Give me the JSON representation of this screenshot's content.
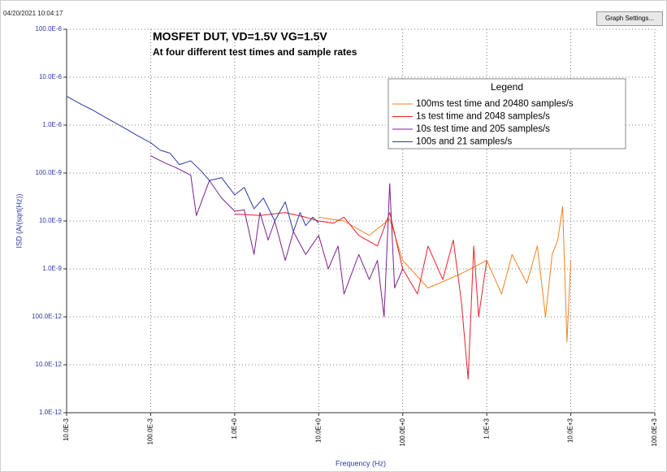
{
  "toolbar": {
    "timestamp": "04/20/2021 10:04:17",
    "button": "Graph Settings..."
  },
  "chart_data": {
    "type": "line",
    "title": "MOSFET DUT, VD=1.5V VG=1.5V",
    "subtitle": "At four different test times and sample rates",
    "x_label": "Frequency (Hz)",
    "y_label": "ISD (A/(sqrt(Hz))",
    "x_log": true,
    "y_log": true,
    "grid": true,
    "legend_title": "Legend",
    "legend_position": "upper right",
    "xlim": [
      0.01,
      100000
    ],
    "ylim": [
      1e-12,
      0.0001
    ],
    "xticks": [
      {
        "value": 0.01,
        "label": "10.0E-3"
      },
      {
        "value": 0.1,
        "label": "100.0E-3"
      },
      {
        "value": 1,
        "label": "1.0E+0"
      },
      {
        "value": 10,
        "label": "10.0E+0"
      },
      {
        "value": 100,
        "label": "100.0E+0"
      },
      {
        "value": 1000,
        "label": "1.0E+3"
      },
      {
        "value": 10000,
        "label": "10.0E+3"
      },
      {
        "value": 100000,
        "label": "100.0E+3"
      }
    ],
    "yticks": [
      {
        "value": 1e-12,
        "label": "1.0E-12"
      },
      {
        "value": 1e-11,
        "label": "10.0E-12"
      },
      {
        "value": 1e-10,
        "label": "100.0E-12"
      },
      {
        "value": 1e-09,
        "label": "1.0E-9"
      },
      {
        "value": 1e-08,
        "label": "10.0E-9"
      },
      {
        "value": 1e-07,
        "label": "100.0E-9"
      },
      {
        "value": 1e-06,
        "label": "1.0E-6"
      },
      {
        "value": 1e-05,
        "label": "10.0E-6"
      },
      {
        "value": 0.0001,
        "label": "100.0E-6"
      }
    ],
    "series": [
      {
        "name": "100ms test time and 20480 samples/s",
        "color": "#f5821f",
        "x": [
          10,
          20,
          40,
          70,
          100,
          200,
          500,
          1000,
          1500,
          2000,
          3000,
          4000,
          5000,
          6000,
          7000,
          8000,
          9000,
          10000
        ],
        "values": [
          1.2e-08,
          1e-08,
          5e-09,
          1.1e-08,
          1.5e-09,
          4e-10,
          8e-10,
          1.5e-09,
          3e-10,
          2e-09,
          5e-10,
          3e-09,
          1e-10,
          2e-09,
          4e-09,
          2e-08,
          3e-11,
          1.5e-09
        ]
      },
      {
        "name": "1s test time and 2048 samples/s",
        "color": "#e8202a",
        "x": [
          1,
          2,
          4,
          7,
          10,
          15,
          20,
          30,
          50,
          70,
          100,
          150,
          200,
          300,
          400,
          500,
          600,
          700,
          800,
          1000
        ],
        "values": [
          1.4e-08,
          1.3e-08,
          1.5e-08,
          1.2e-08,
          1e-08,
          9e-09,
          1.2e-08,
          5e-09,
          3e-09,
          1.5e-08,
          1e-09,
          3e-10,
          3e-09,
          6e-10,
          4e-09,
          2e-10,
          5e-12,
          3e-09,
          1e-10,
          1.5e-09
        ]
      },
      {
        "name": "10s test time and 205 samples/s",
        "color": "#7b1f8f",
        "x": [
          0.1,
          0.15,
          0.2,
          0.3,
          0.35,
          0.5,
          0.7,
          1,
          1.3,
          1.7,
          2,
          2.5,
          3,
          4,
          5,
          7,
          10,
          13,
          17,
          20,
          30,
          40,
          50,
          60,
          70,
          80,
          100
        ],
        "values": [
          2.3e-07,
          1.6e-07,
          1.3e-07,
          9e-08,
          1.3e-08,
          7e-08,
          3e-08,
          1.6e-08,
          1.7e-08,
          2e-09,
          1.5e-08,
          4e-09,
          1e-08,
          1.5e-09,
          6e-09,
          2e-09,
          5e-09,
          1e-09,
          3e-09,
          3e-10,
          2e-09,
          6e-10,
          1.5e-09,
          1e-10,
          6e-08,
          4e-10,
          1e-09
        ]
      },
      {
        "name": "100s and 21 samples/s",
        "color": "#2e3a9f",
        "x": [
          0.01,
          0.015,
          0.02,
          0.03,
          0.05,
          0.07,
          0.1,
          0.13,
          0.17,
          0.22,
          0.3,
          0.4,
          0.5,
          0.7,
          1,
          1.3,
          1.7,
          2.2,
          3,
          4,
          5,
          6,
          7,
          8.5,
          10
        ],
        "values": [
          4e-06,
          2.7e-06,
          2.1e-06,
          1.4e-06,
          8.5e-07,
          6e-07,
          4.3e-07,
          3e-07,
          2.6e-07,
          1.5e-07,
          1.8e-07,
          1.1e-07,
          7e-08,
          8e-08,
          3.5e-08,
          5e-08,
          1.8e-08,
          3e-08,
          1e-08,
          2.5e-08,
          6e-09,
          1.5e-08,
          8e-09,
          1.2e-08,
          9e-09
        ]
      }
    ]
  }
}
